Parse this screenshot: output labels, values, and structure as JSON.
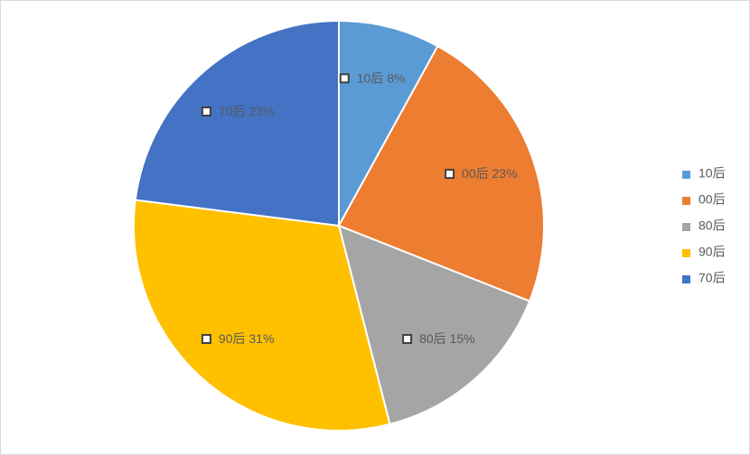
{
  "chart_data": {
    "type": "pie",
    "categories": [
      "10后",
      "00后",
      "80后",
      "90后",
      "70后"
    ],
    "values": [
      8,
      23,
      15,
      31,
      23
    ],
    "value_labels": [
      "8%",
      "23%",
      "15%",
      "31%",
      "23%"
    ],
    "colors": [
      "#5b9bd5",
      "#ed7d31",
      "#a5a5a5",
      "#ffc000",
      "#4472c4"
    ],
    "legend": "right"
  }
}
